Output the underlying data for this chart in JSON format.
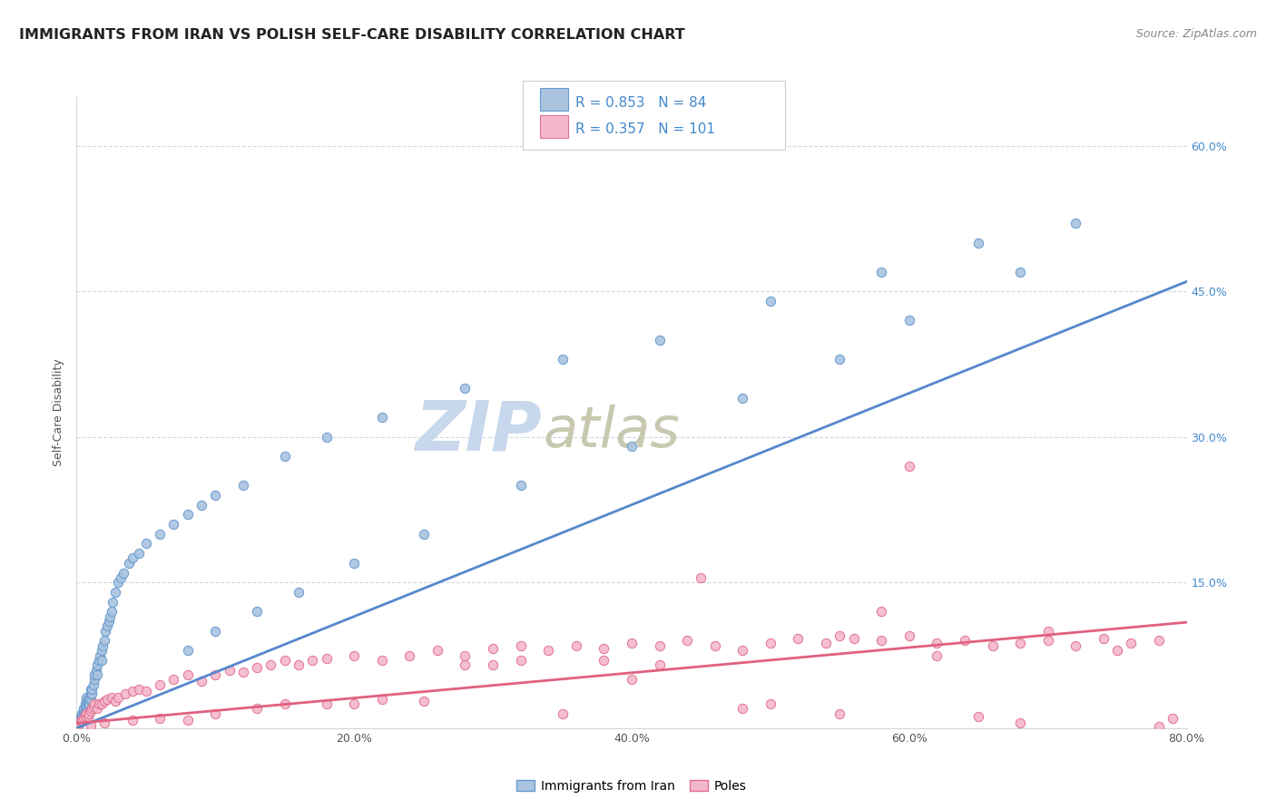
{
  "title": "IMMIGRANTS FROM IRAN VS POLISH SELF-CARE DISABILITY CORRELATION CHART",
  "source": "Source: ZipAtlas.com",
  "ylabel": "Self-Care Disability",
  "xlim": [
    0.0,
    0.8
  ],
  "ylim": [
    0.0,
    0.65
  ],
  "title_fontsize": 11.5,
  "source_fontsize": 9,
  "axis_label_fontsize": 9,
  "tick_fontsize": 9,
  "background_color": "#ffffff",
  "grid_color": "#d0d8e0",
  "iran_fill_color": "#aac4e0",
  "iran_edge_color": "#6699cc",
  "poles_fill_color": "#f4b8cc",
  "poles_edge_color": "#e07090",
  "iran_line_color": "#5588cc",
  "poles_line_color": "#e06080",
  "iran_R": 0.853,
  "iran_N": 84,
  "poles_R": 0.357,
  "poles_N": 101,
  "blue_text_color": "#4488cc",
  "watermark_zip": "ZIP",
  "watermark_atlas": "atlas",
  "watermark_color_zip": "#c8d8ec",
  "watermark_color_atlas": "#c8c8b0",
  "iran_reg_intercept": -0.02,
  "iran_reg_slope": 0.6,
  "poles_reg_intercept": 0.005,
  "poles_reg_slope": 0.13,
  "iran_scatter_x": [
    0.001,
    0.002,
    0.002,
    0.003,
    0.003,
    0.003,
    0.004,
    0.004,
    0.004,
    0.005,
    0.005,
    0.005,
    0.005,
    0.006,
    0.006,
    0.006,
    0.007,
    0.007,
    0.007,
    0.007,
    0.008,
    0.008,
    0.008,
    0.009,
    0.009,
    0.01,
    0.01,
    0.01,
    0.011,
    0.011,
    0.012,
    0.013,
    0.013,
    0.014,
    0.015,
    0.015,
    0.016,
    0.017,
    0.018,
    0.018,
    0.019,
    0.02,
    0.021,
    0.022,
    0.023,
    0.024,
    0.025,
    0.026,
    0.028,
    0.03,
    0.032,
    0.034,
    0.038,
    0.04,
    0.045,
    0.05,
    0.06,
    0.07,
    0.08,
    0.09,
    0.1,
    0.12,
    0.15,
    0.18,
    0.22,
    0.28,
    0.35,
    0.42,
    0.5,
    0.58,
    0.65,
    0.72,
    0.68,
    0.6,
    0.55,
    0.48,
    0.4,
    0.32,
    0.25,
    0.2,
    0.16,
    0.13,
    0.1,
    0.08
  ],
  "iran_scatter_y": [
    0.003,
    0.005,
    0.008,
    0.006,
    0.01,
    0.012,
    0.008,
    0.012,
    0.015,
    0.01,
    0.015,
    0.018,
    0.02,
    0.015,
    0.02,
    0.025,
    0.018,
    0.022,
    0.028,
    0.032,
    0.02,
    0.025,
    0.03,
    0.025,
    0.03,
    0.03,
    0.035,
    0.04,
    0.035,
    0.04,
    0.045,
    0.05,
    0.055,
    0.06,
    0.055,
    0.065,
    0.07,
    0.075,
    0.07,
    0.08,
    0.085,
    0.09,
    0.1,
    0.105,
    0.11,
    0.115,
    0.12,
    0.13,
    0.14,
    0.15,
    0.155,
    0.16,
    0.17,
    0.175,
    0.18,
    0.19,
    0.2,
    0.21,
    0.22,
    0.23,
    0.24,
    0.25,
    0.28,
    0.3,
    0.32,
    0.35,
    0.38,
    0.4,
    0.44,
    0.47,
    0.5,
    0.52,
    0.47,
    0.42,
    0.38,
    0.34,
    0.29,
    0.25,
    0.2,
    0.17,
    0.14,
    0.12,
    0.1,
    0.08
  ],
  "poles_scatter_x": [
    0.001,
    0.002,
    0.003,
    0.004,
    0.005,
    0.006,
    0.007,
    0.008,
    0.009,
    0.01,
    0.011,
    0.012,
    0.013,
    0.015,
    0.016,
    0.018,
    0.02,
    0.022,
    0.025,
    0.028,
    0.03,
    0.035,
    0.04,
    0.045,
    0.05,
    0.06,
    0.07,
    0.08,
    0.09,
    0.1,
    0.11,
    0.12,
    0.13,
    0.14,
    0.15,
    0.16,
    0.17,
    0.18,
    0.2,
    0.22,
    0.24,
    0.26,
    0.28,
    0.3,
    0.32,
    0.34,
    0.36,
    0.38,
    0.4,
    0.42,
    0.44,
    0.46,
    0.48,
    0.5,
    0.52,
    0.54,
    0.56,
    0.58,
    0.6,
    0.62,
    0.64,
    0.66,
    0.68,
    0.7,
    0.72,
    0.74,
    0.76,
    0.78,
    0.79,
    0.6,
    0.45,
    0.35,
    0.25,
    0.18,
    0.13,
    0.08,
    0.55,
    0.65,
    0.5,
    0.4,
    0.3,
    0.2,
    0.55,
    0.7,
    0.75,
    0.62,
    0.48,
    0.38,
    0.28,
    0.58,
    0.68,
    0.78,
    0.42,
    0.32,
    0.22,
    0.15,
    0.1,
    0.06,
    0.04,
    0.02,
    0.01
  ],
  "poles_scatter_y": [
    0.003,
    0.005,
    0.007,
    0.008,
    0.01,
    0.012,
    0.015,
    0.012,
    0.015,
    0.018,
    0.02,
    0.022,
    0.025,
    0.02,
    0.025,
    0.025,
    0.028,
    0.03,
    0.032,
    0.028,
    0.032,
    0.035,
    0.038,
    0.04,
    0.038,
    0.045,
    0.05,
    0.055,
    0.048,
    0.055,
    0.06,
    0.058,
    0.062,
    0.065,
    0.07,
    0.065,
    0.07,
    0.072,
    0.075,
    0.07,
    0.075,
    0.08,
    0.075,
    0.082,
    0.085,
    0.08,
    0.085,
    0.082,
    0.088,
    0.085,
    0.09,
    0.085,
    0.08,
    0.088,
    0.092,
    0.088,
    0.092,
    0.09,
    0.095,
    0.088,
    0.09,
    0.085,
    0.088,
    0.09,
    0.085,
    0.092,
    0.088,
    0.09,
    0.01,
    0.27,
    0.155,
    0.015,
    0.028,
    0.025,
    0.02,
    0.008,
    0.015,
    0.012,
    0.025,
    0.05,
    0.065,
    0.025,
    0.095,
    0.1,
    0.08,
    0.075,
    0.02,
    0.07,
    0.065,
    0.12,
    0.005,
    0.002,
    0.065,
    0.07,
    0.03,
    0.025,
    0.015,
    0.01,
    0.008,
    0.005,
    0.003
  ],
  "ytick_positions": [
    0.0,
    0.15,
    0.3,
    0.45,
    0.6
  ],
  "ytick_labels_left": [
    "",
    "",
    "",
    "",
    ""
  ],
  "ytick_labels_right": [
    "",
    "15.0%",
    "30.0%",
    "45.0%",
    "60.0%"
  ],
  "xtick_positions": [
    0.0,
    0.2,
    0.4,
    0.6,
    0.8
  ],
  "xtick_labels": [
    "0.0%",
    "20.0%",
    "40.0%",
    "60.0%",
    "80.0%"
  ],
  "legend_label_iran": "Immigrants from Iran",
  "legend_label_poles": "Poles"
}
